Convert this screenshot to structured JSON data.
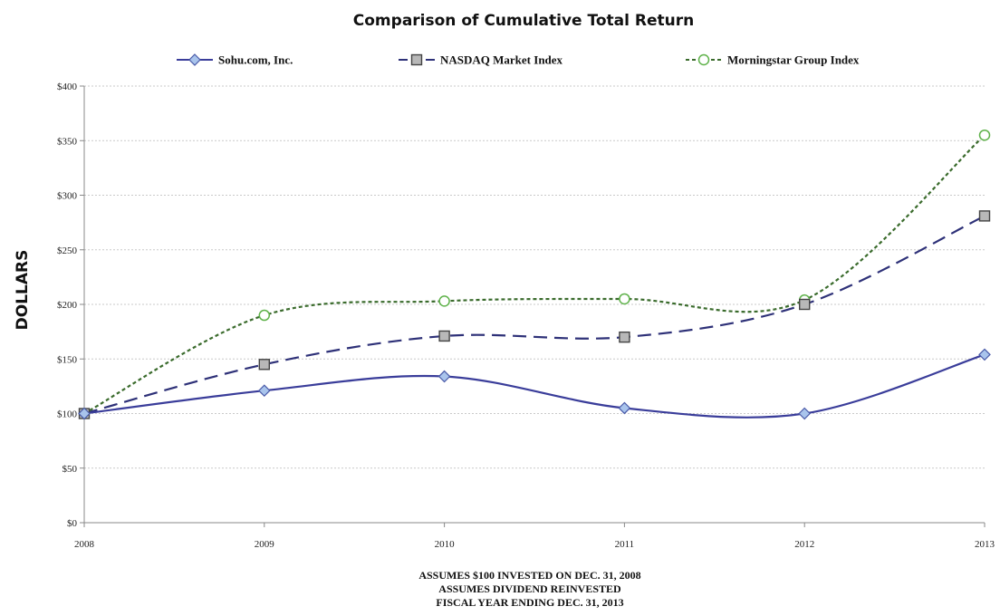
{
  "chart_data": {
    "type": "line",
    "title": "Comparison of Cumulative Total Return",
    "ylabel": "DOLLARS",
    "xlabel": "",
    "x": [
      "2008",
      "2009",
      "2010",
      "2011",
      "2012",
      "2013"
    ],
    "y_ticks": [
      "$0",
      "$50",
      "$100",
      "$150",
      "$200",
      "$250",
      "$300",
      "$350",
      "$400"
    ],
    "ylim": [
      0,
      400
    ],
    "grid": true,
    "legend_position": "top",
    "series": [
      {
        "name": "Sohu.com, Inc.",
        "values": [
          100,
          121,
          134,
          105,
          100,
          154
        ],
        "color": "#3a3d9a",
        "marker": "diamond",
        "dash": "solid",
        "marker_fill": "#a9c4ec"
      },
      {
        "name": "NASDAQ Market Index",
        "values": [
          100,
          145,
          171,
          170,
          200,
          281
        ],
        "color": "#2e3178",
        "marker": "square",
        "dash": "long-dash",
        "marker_fill": "#b8b8b8"
      },
      {
        "name": "Morningstar Group Index",
        "values": [
          100,
          190,
          203,
          205,
          204,
          355
        ],
        "color": "#3a6b2c",
        "marker": "circle",
        "dash": "dotted",
        "marker_fill": "#ffffff",
        "marker_stroke": "#5fb24a"
      }
    ],
    "footnotes": [
      "ASSUMES $100 INVESTED ON DEC. 31, 2008",
      "ASSUMES DIVIDEND REINVESTED",
      "FISCAL YEAR ENDING DEC. 31, 2013"
    ]
  }
}
